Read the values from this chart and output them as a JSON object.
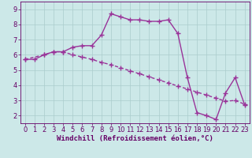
{
  "line1_x": [
    0,
    1,
    2,
    3,
    4,
    5,
    6,
    7,
    8,
    9,
    10,
    11,
    12,
    13,
    14,
    15,
    16,
    17,
    18,
    19,
    20,
    21,
    22,
    23
  ],
  "line1_y": [
    5.7,
    5.7,
    6.0,
    6.2,
    6.2,
    6.5,
    6.6,
    6.6,
    7.3,
    8.7,
    8.5,
    8.3,
    8.3,
    8.2,
    8.2,
    8.3,
    7.4,
    4.5,
    2.2,
    2.0,
    1.75,
    3.5,
    4.5,
    2.7
  ],
  "line2_x": [
    0,
    2,
    3,
    4,
    5,
    6,
    7,
    8,
    9,
    10,
    11,
    12,
    13,
    14,
    15,
    16,
    17,
    18,
    19,
    20,
    21,
    22,
    23
  ],
  "line2_y": [
    5.7,
    6.0,
    6.2,
    6.2,
    6.0,
    5.85,
    5.7,
    5.5,
    5.35,
    5.15,
    4.95,
    4.75,
    4.55,
    4.35,
    4.15,
    3.95,
    3.75,
    3.55,
    3.35,
    3.15,
    2.95,
    3.0,
    2.75
  ],
  "line_color": "#993399",
  "bg_color": "#cce8e8",
  "grid_color": "#aacccc",
  "xlabel": "Windchill (Refroidissement éolien,°C)",
  "xlim": [
    -0.5,
    23.5
  ],
  "ylim": [
    1.5,
    9.5
  ],
  "yticks": [
    2,
    3,
    4,
    5,
    6,
    7,
    8,
    9
  ],
  "xticks": [
    0,
    1,
    2,
    3,
    4,
    5,
    6,
    7,
    8,
    9,
    10,
    11,
    12,
    13,
    14,
    15,
    16,
    17,
    18,
    19,
    20,
    21,
    22,
    23
  ],
  "marker1": "+",
  "marker2": "+",
  "marker_size": 4,
  "line_width": 1.0,
  "line2_style": "--",
  "xlabel_fontsize": 6.5,
  "tick_fontsize": 6,
  "xlabel_color": "#660066",
  "tick_color": "#660066",
  "spine_color": "#660066"
}
